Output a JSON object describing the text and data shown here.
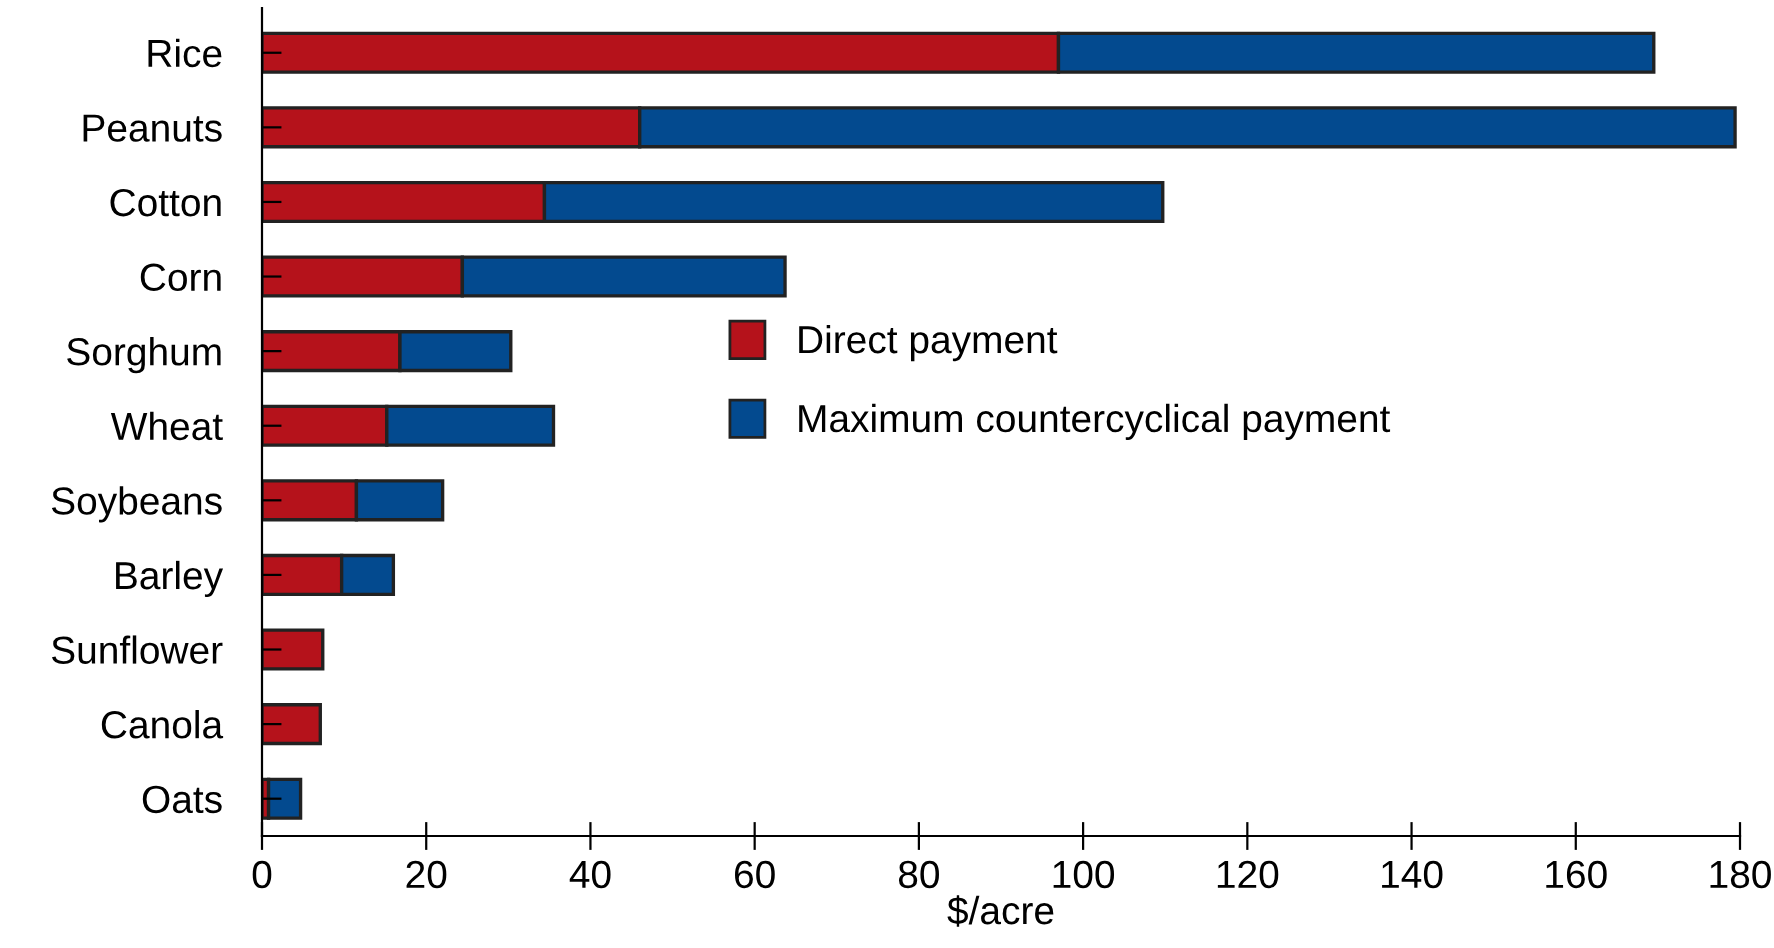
{
  "chart_data": {
    "type": "bar",
    "orientation": "horizontal",
    "stacked": true,
    "xlabel": "$/acre",
    "categories": [
      "Rice",
      "Peanuts",
      "Cotton",
      "Corn",
      "Sorghum",
      "Wheat",
      "Soybeans",
      "Barley",
      "Sunflower",
      "Canola",
      "Oats"
    ],
    "series": [
      {
        "name": "Direct payment",
        "color": "#b5121b",
        "values": [
          97,
          46,
          34.4,
          24.4,
          16.8,
          15.2,
          11.5,
          9.7,
          7.4,
          7.1,
          0.8
        ]
      },
      {
        "name": "Maximum countercyclical payment",
        "color": "#034a8f",
        "values": [
          72.5,
          133.4,
          75.3,
          39.3,
          13.5,
          20.3,
          10.5,
          6.3,
          null,
          null,
          3.9
        ]
      }
    ],
    "xlim": [
      0,
      180
    ],
    "xticks": [
      0,
      20,
      40,
      60,
      80,
      100,
      120,
      140,
      160,
      180
    ],
    "grid": false,
    "legend": "center"
  }
}
